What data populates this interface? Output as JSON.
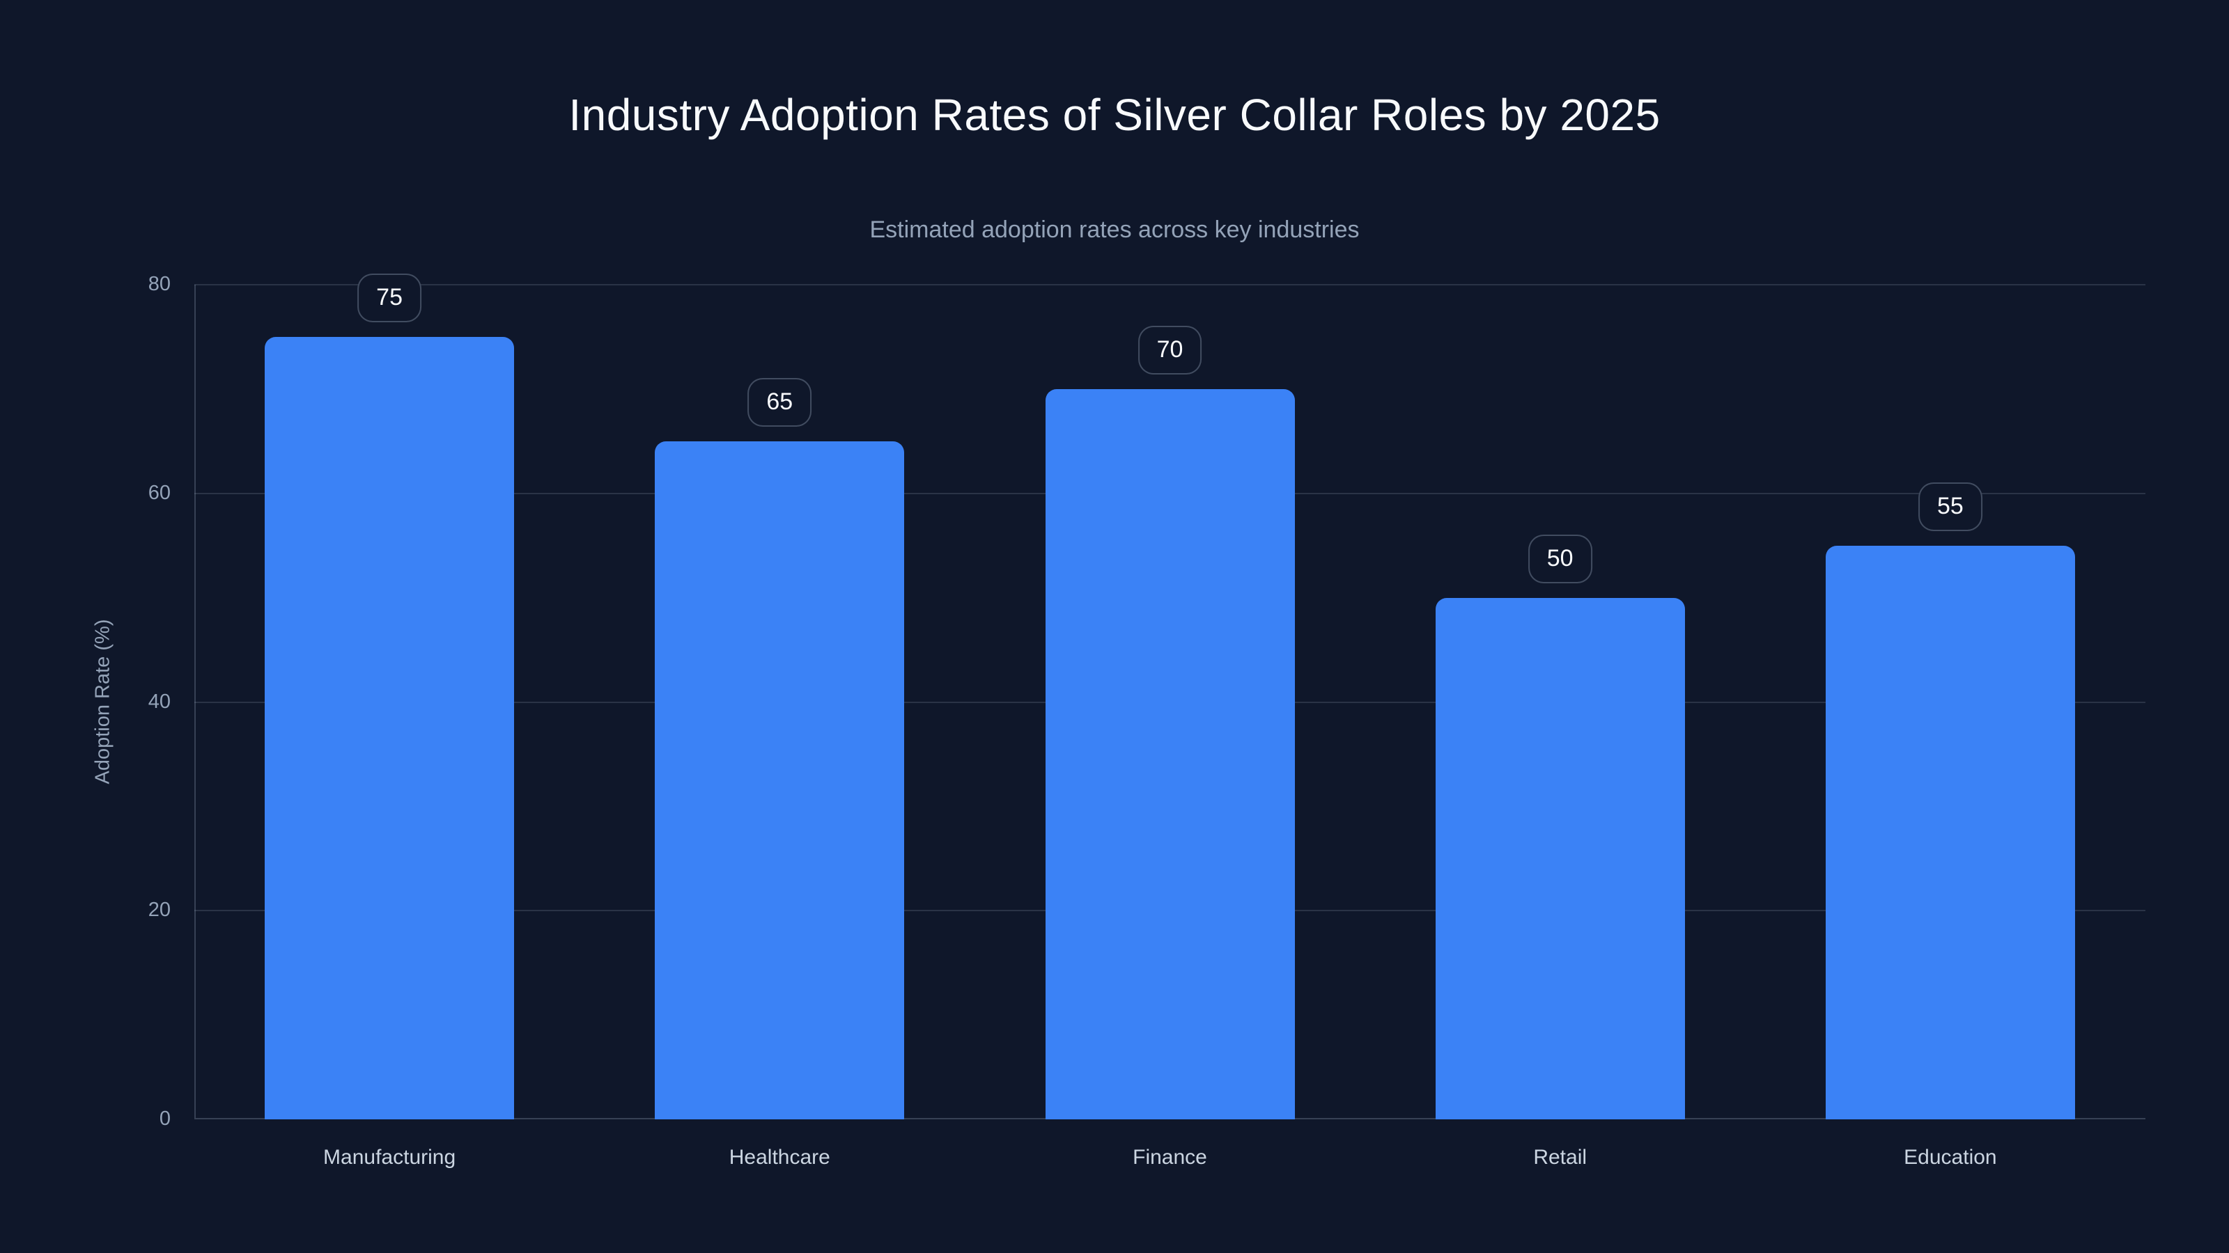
{
  "header": {
    "title": "Industry Adoption Rates of Silver Collar Roles by 2025",
    "subtitle": "Estimated adoption rates across key industries"
  },
  "chart_data": {
    "type": "bar",
    "title": "Industry Adoption Rates of Silver Collar Roles by 2025",
    "subtitle": "Estimated adoption rates across key industries",
    "categories": [
      "Manufacturing",
      "Healthcare",
      "Finance",
      "Retail",
      "Education"
    ],
    "values": [
      75,
      65,
      70,
      50,
      55
    ],
    "value_labels": [
      "75",
      "65",
      "70",
      "50",
      "55"
    ],
    "xlabel": "",
    "ylabel": "Adoption Rate (%)",
    "ylim": [
      0,
      80
    ],
    "yticks": [
      0,
      20,
      40,
      60,
      80
    ],
    "grid": true,
    "legend": false
  },
  "colors": {
    "background": "#0f172a",
    "title_text": "#f8fafc",
    "subtitle_text": "#94a3b8",
    "tick_label": "#94a3b8",
    "axis_title": "#94a3b8",
    "category_label": "#cbd5e1",
    "bar": "#3b82f6",
    "gridline": "rgba(148,163,184,0.20)",
    "axis_line": "rgba(148,163,184,0.30)",
    "badge_border": "rgba(148,163,184,0.38)",
    "badge_background": "#0f172a",
    "badge_text": "#f8fafc"
  }
}
